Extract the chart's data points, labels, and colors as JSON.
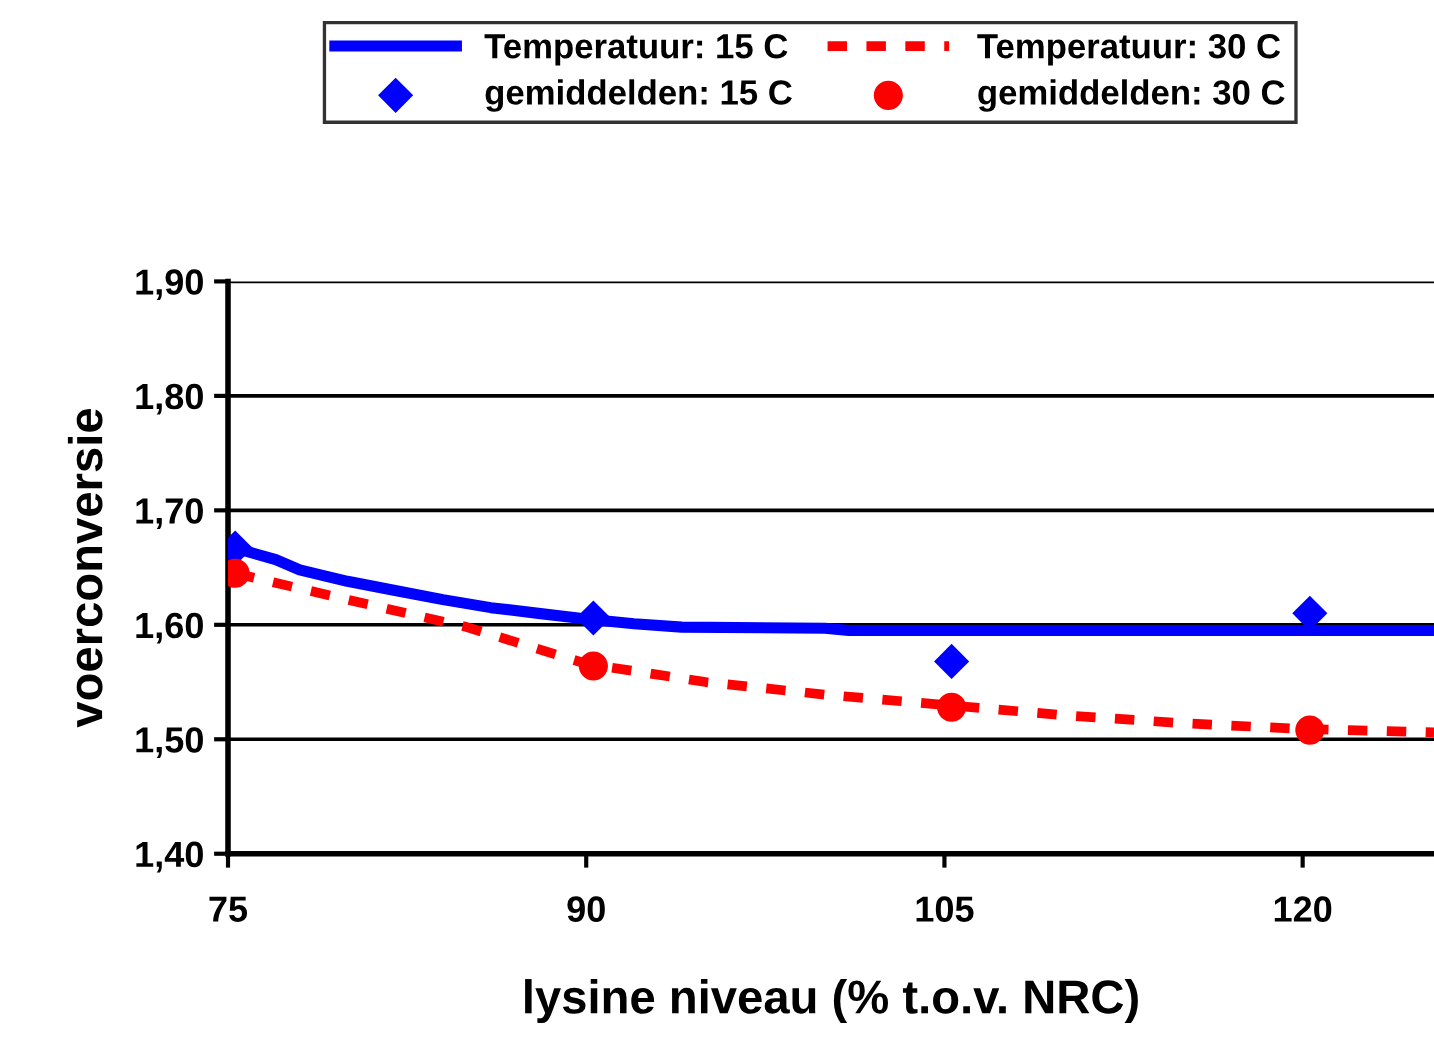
{
  "chart_data": {
    "type": "line",
    "xlabel": "lysine niveau (% t.o.v. NRC)",
    "ylabel": "voerconversie",
    "xlim": [
      75,
      125.5
    ],
    "xticks": [
      75,
      90,
      105,
      120
    ],
    "ylim": [
      1.4,
      1.9
    ],
    "yticks": [
      {
        "value": 1.4,
        "label": "1,40"
      },
      {
        "value": 1.5,
        "label": "1,50"
      },
      {
        "value": 1.6,
        "label": "1,60"
      },
      {
        "value": 1.7,
        "label": "1,70"
      },
      {
        "value": 1.8,
        "label": "1,80"
      },
      {
        "value": 1.9,
        "label": "1,90"
      }
    ],
    "grid": "y",
    "legend": "top",
    "series": [
      {
        "name": "Temperatuur: 15 C",
        "line_style": "solid",
        "marker": "none",
        "color": "#0000ff",
        "x": [
          75.3,
          77,
          78,
          80,
          82,
          84,
          86,
          88,
          90,
          92,
          94,
          100,
          101,
          125.5
        ],
        "values": [
          1.667,
          1.657,
          1.648,
          1.638,
          1.63,
          1.622,
          1.615,
          1.61,
          1.605,
          1.601,
          1.598,
          1.597,
          1.595,
          1.595
        ]
      },
      {
        "name": "Temperatuur: 30 C",
        "line_style": "dashed",
        "marker": "none",
        "color": "#ff0000",
        "x": [
          75.3,
          80,
          85,
          90,
          95,
          100,
          105,
          110,
          115,
          120,
          125.5
        ],
        "values": [
          1.645,
          1.622,
          1.598,
          1.566,
          1.55,
          1.539,
          1.53,
          1.521,
          1.514,
          1.509,
          1.506
        ]
      },
      {
        "name": "gemiddelden: 15 C",
        "type": "scatter",
        "marker": "diamond",
        "color": "#0000ff",
        "x": [
          75.3,
          90.3,
          105.3,
          120.3
        ],
        "values": [
          1.667,
          1.606,
          1.568,
          1.61
        ]
      },
      {
        "name": "gemiddelden: 30 C",
        "type": "scatter",
        "marker": "circle",
        "color": "#ff0000",
        "x": [
          75.3,
          90.3,
          105.3,
          120.3
        ],
        "values": [
          1.645,
          1.564,
          1.528,
          1.508
        ]
      }
    ]
  }
}
